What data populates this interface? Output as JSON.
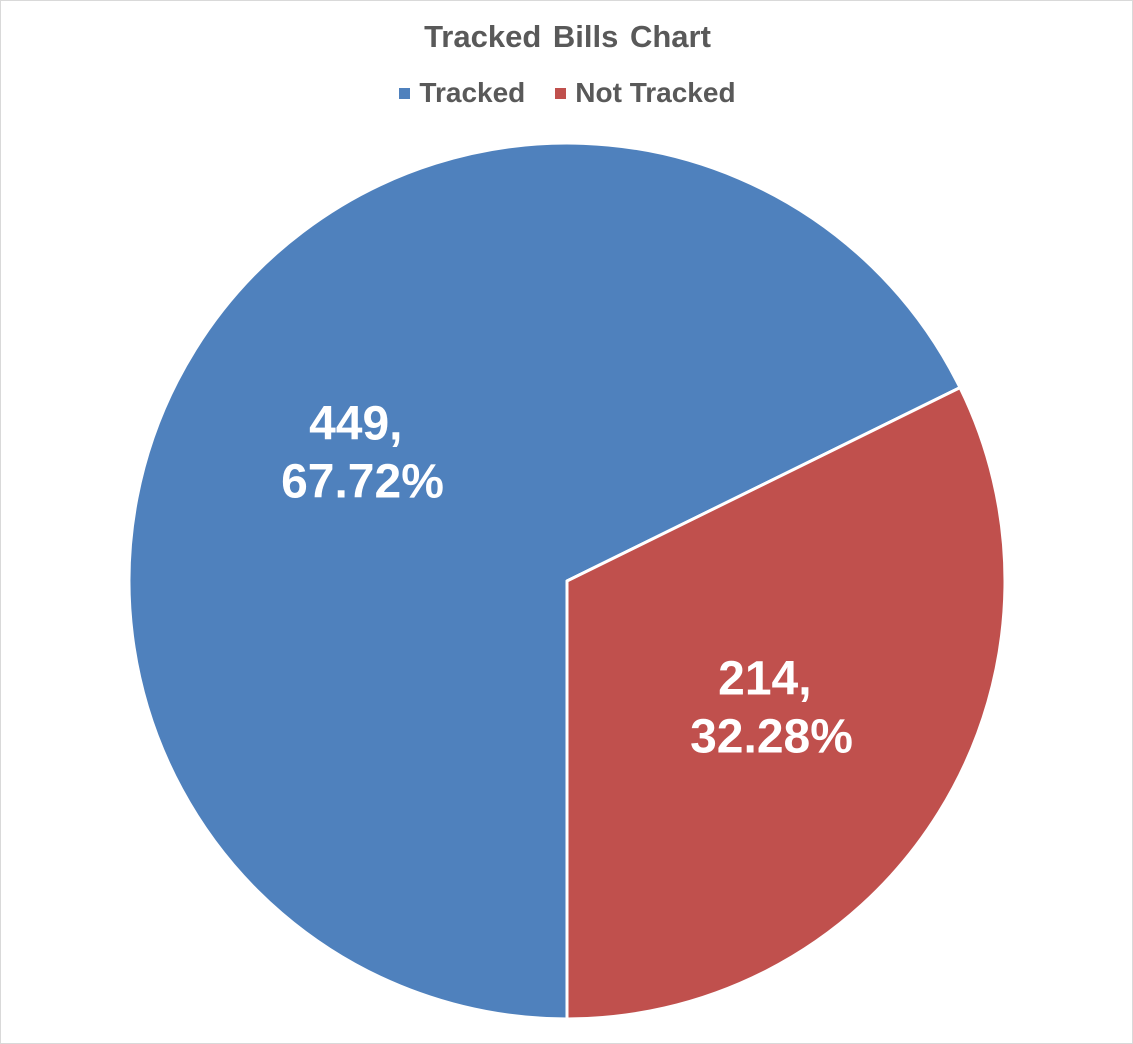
{
  "chart_data": {
    "type": "pie",
    "title": "Tracked Bills Chart",
    "legend_position": "top",
    "categories": [
      "Tracked",
      "Not Tracked"
    ],
    "values": [
      449,
      214
    ],
    "percentages": [
      "67.72%",
      "32.28%"
    ],
    "data_labels": [
      {
        "value_text": "449,",
        "percent_text": "67.72%"
      },
      {
        "value_text": "214,",
        "percent_text": "32.28%"
      }
    ],
    "colors": [
      "#4f81bd",
      "#c0504d"
    ]
  },
  "legend": [
    {
      "label": "Tracked",
      "color": "#4f81bd"
    },
    {
      "label": "Not Tracked",
      "color": "#c0504d"
    }
  ]
}
